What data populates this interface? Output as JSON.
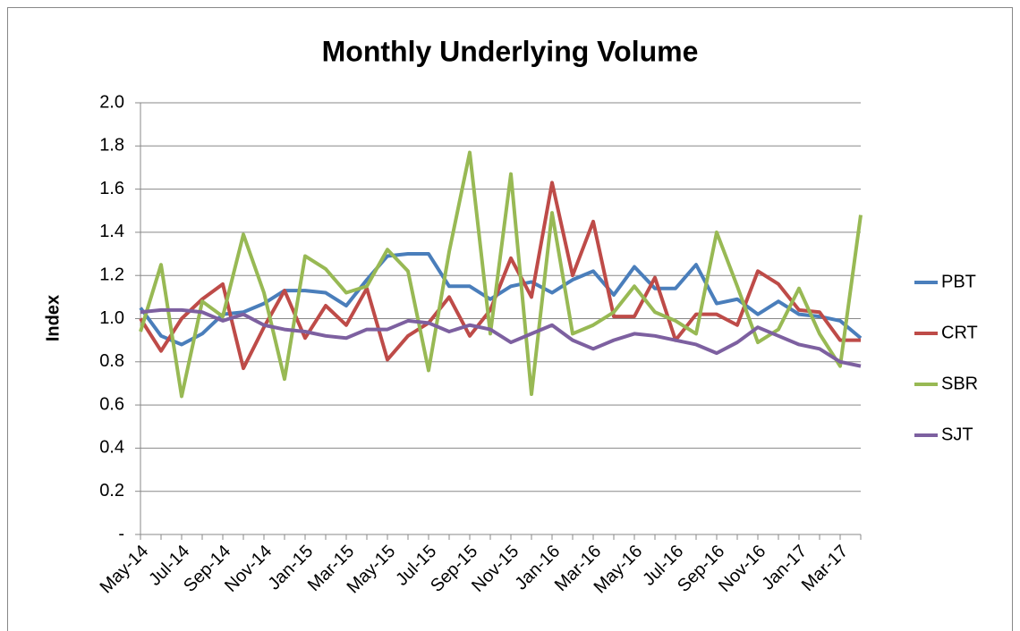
{
  "chart_data": {
    "type": "line",
    "title": "Monthly Underlying Volume",
    "y_label": "Index",
    "categories": [
      "May-14",
      null,
      "Jul-14",
      null,
      "Sep-14",
      null,
      "Nov-14",
      null,
      "Jan-15",
      null,
      "Mar-15",
      null,
      "May-15",
      null,
      "Jul-15",
      null,
      "Sep-15",
      null,
      "Nov-15",
      null,
      "Jan-16",
      null,
      "Mar-16",
      null,
      "May-16",
      null,
      "Jul-16",
      null,
      "Sep-16",
      null,
      "Nov-16",
      null,
      "Jan-17",
      null,
      "Mar-17",
      null
    ],
    "series": [
      {
        "name": "PBT",
        "color": "#4a7ebb",
        "values": [
          1.05,
          0.92,
          0.88,
          0.93,
          1.02,
          1.03,
          1.07,
          1.13,
          1.13,
          1.12,
          1.06,
          1.18,
          1.29,
          1.3,
          1.3,
          1.15,
          1.15,
          1.09,
          1.15,
          1.17,
          1.12,
          1.18,
          1.22,
          1.11,
          1.24,
          1.14,
          1.14,
          1.25,
          1.07,
          1.09,
          1.02,
          1.08,
          1.02,
          1.01,
          0.99,
          0.91
        ]
      },
      {
        "name": "CRT",
        "color": "#be4b48",
        "values": [
          1.0,
          0.85,
          1.0,
          1.09,
          1.16,
          0.77,
          0.96,
          1.13,
          0.91,
          1.06,
          0.97,
          1.14,
          0.81,
          0.92,
          0.98,
          1.1,
          0.92,
          1.04,
          1.28,
          1.1,
          1.63,
          1.2,
          1.45,
          1.01,
          1.01,
          1.19,
          0.9,
          1.02,
          1.02,
          0.97,
          1.22,
          1.16,
          1.04,
          1.03,
          0.9,
          0.9
        ]
      },
      {
        "name": "SBR",
        "color": "#98b954",
        "values": [
          0.94,
          1.25,
          0.64,
          1.08,
          1.01,
          1.39,
          1.12,
          0.72,
          1.29,
          1.23,
          1.12,
          1.15,
          1.32,
          1.22,
          0.76,
          1.31,
          1.77,
          0.93,
          1.67,
          0.65,
          1.49,
          0.93,
          0.97,
          1.03,
          1.15,
          1.03,
          0.99,
          0.93,
          1.4,
          1.15,
          0.89,
          0.95,
          1.14,
          0.93,
          0.78,
          1.48
        ]
      },
      {
        "name": "SJT",
        "color": "#7d60a0",
        "values": [
          1.03,
          1.04,
          1.04,
          1.03,
          0.99,
          1.02,
          0.97,
          0.95,
          0.94,
          0.92,
          0.91,
          0.95,
          0.95,
          0.99,
          0.98,
          0.94,
          0.97,
          0.95,
          0.89,
          0.93,
          0.97,
          0.9,
          0.86,
          0.9,
          0.93,
          0.92,
          0.9,
          0.88,
          0.84,
          0.89,
          0.96,
          0.92,
          0.88,
          0.86,
          0.8,
          0.78
        ]
      }
    ],
    "ylim": [
      0,
      2
    ],
    "yticks": [
      {
        "value": 0,
        "label": "-"
      },
      0.2,
      0.4,
      0.6,
      0.8,
      {
        "value": 1,
        "label": "1.0"
      },
      1.2,
      1.4,
      1.6,
      1.8,
      {
        "value": 2,
        "label": "2.0"
      }
    ],
    "grid": true,
    "legend": "right"
  }
}
